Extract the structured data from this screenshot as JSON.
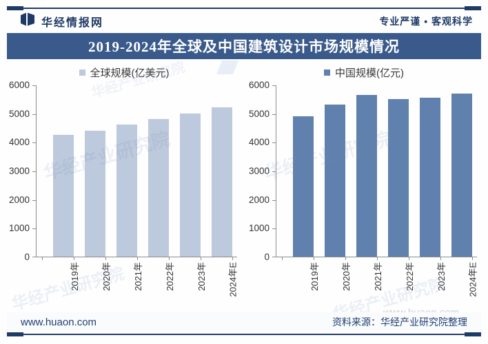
{
  "header": {
    "brand": "华经情报网",
    "tagline": "专业严谨 • 客观科学"
  },
  "title": "2019-2024年全球及中国建筑设计市场规模情况",
  "footer": {
    "site": "www.huaon.com",
    "source": "资料来源：华经产业研究院整理"
  },
  "watermark_text": "华经产业研究院",
  "colors": {
    "navy": "#1e3a66",
    "banner_bg": "#3a5a8c",
    "axis": "#8a8a8a",
    "global_bar": "#bdc9dc",
    "china_bar": "#6080ad"
  },
  "chart_data": [
    {
      "type": "bar",
      "legend": "全球规模(亿美元)",
      "categories": [
        "2019年",
        "2020年",
        "2021年",
        "2022年",
        "2023年",
        "2024年E"
      ],
      "values": [
        4250,
        4400,
        4600,
        4800,
        5000,
        5200
      ],
      "bar_color": "#bdc9dc",
      "ylim": [
        0,
        6000
      ],
      "ytick_step": 1000,
      "grid": false,
      "legend_position": "top"
    },
    {
      "type": "bar",
      "legend": "中国规模(亿元)",
      "categories": [
        "2019年",
        "2020年",
        "2021年",
        "2022年",
        "2023年",
        "2024年E"
      ],
      "values": [
        4900,
        5300,
        5650,
        5500,
        5550,
        5680
      ],
      "bar_color": "#6080ad",
      "ylim": [
        0,
        6000
      ],
      "ytick_step": 1000,
      "grid": false,
      "legend_position": "top"
    }
  ]
}
